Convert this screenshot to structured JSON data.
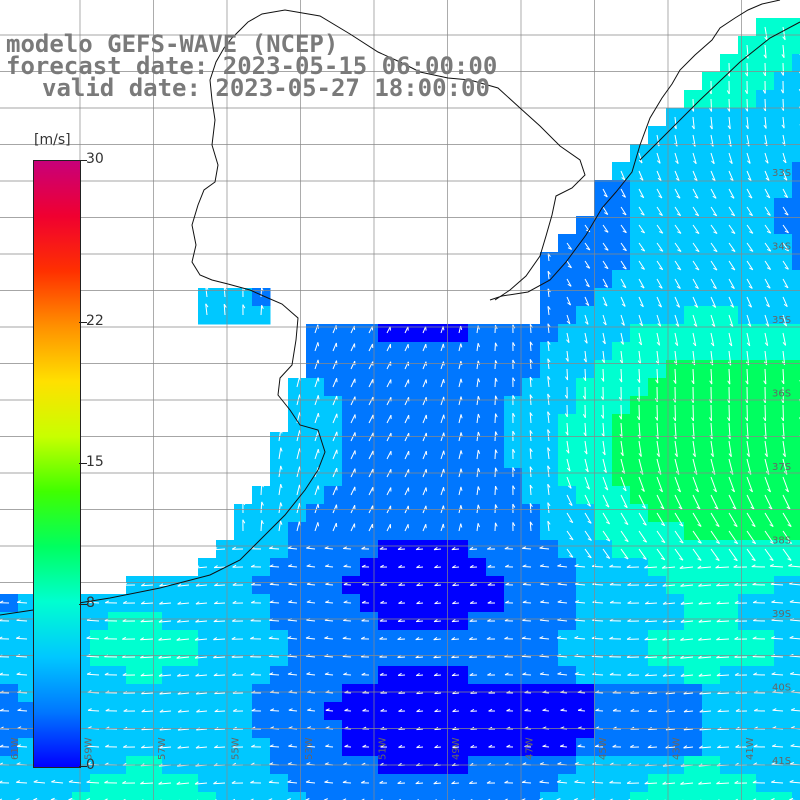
{
  "title": {
    "line1": "modelo GEFS-WAVE (NCEP)",
    "line2": "forecast date: 2023-05-15 06:00:00",
    "line3": "valid date: 2023-05-27 18:00:00"
  },
  "colorbar": {
    "unit": "[m/s]",
    "ticks": [
      "30",
      "22",
      "15",
      "8",
      "0"
    ],
    "tick_values": [
      30,
      22,
      15,
      8,
      0
    ],
    "colors": [
      "#0000ff",
      "#0077ff",
      "#00c8ff",
      "#00ffd0",
      "#00ff60",
      "#40ff00",
      "#c8ff00",
      "#ffe000",
      "#ff9000",
      "#ff3000",
      "#f00030",
      "#c8007a"
    ]
  },
  "map": {
    "lon_labels": [
      "61W",
      "59W",
      "57W",
      "55W",
      "53W",
      "51W",
      "49W",
      "47W",
      "45W",
      "43W",
      "41W"
    ],
    "lat_labels": [
      "33S",
      "34S",
      "35S",
      "36S",
      "37S",
      "38S",
      "39S",
      "40S",
      "41S"
    ],
    "land_color": "#ffffff",
    "grid_color": "#888888",
    "arrow_color": "#ffffff"
  }
}
